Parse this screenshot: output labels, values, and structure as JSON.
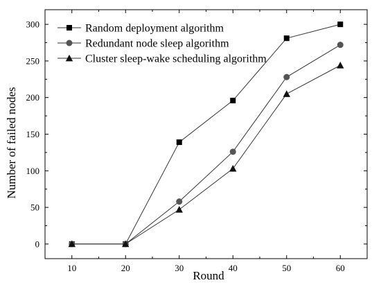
{
  "chart_data": {
    "type": "line",
    "title": "",
    "xlabel": "Round",
    "ylabel": "Number of failed nodes",
    "x": [
      10,
      20,
      30,
      40,
      50,
      60
    ],
    "xlim": [
      5,
      65
    ],
    "ylim": [
      -20,
      320
    ],
    "xticks": [
      10,
      20,
      30,
      40,
      50,
      60
    ],
    "yticks": [
      0,
      50,
      100,
      150,
      200,
      250,
      300
    ],
    "grid": false,
    "legend_position": "top-left",
    "series": [
      {
        "name": "Random deployment algorithm",
        "marker": "square",
        "values": [
          0,
          0,
          139,
          196,
          281,
          300
        ]
      },
      {
        "name": "Redundant node sleep algorithm",
        "marker": "circle",
        "values": [
          0,
          0,
          58,
          126,
          228,
          272
        ]
      },
      {
        "name": "Cluster sleep-wake scheduling algorithm",
        "marker": "triangle",
        "values": [
          0,
          0,
          47,
          103,
          205,
          244
        ]
      }
    ],
    "colors": {
      "square_marker": "#000000",
      "circle_marker": "#555555",
      "triangle_marker": "#111111",
      "line": "#333333",
      "frame": "#000000"
    }
  }
}
